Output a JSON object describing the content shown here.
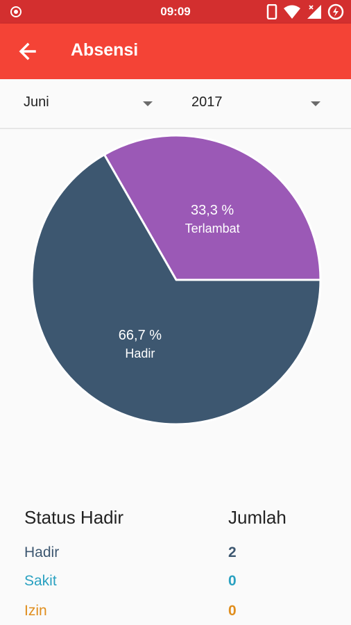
{
  "status_bar": {
    "time": "09:09"
  },
  "app_bar": {
    "title": "Absensi"
  },
  "filters": {
    "month": "Juni",
    "year": "2017"
  },
  "colors": {
    "hadir": "#3d5770",
    "terlambat": "#9b59b6",
    "sakit": "#2aa1c1",
    "izin": "#e08e1d"
  },
  "chart_data": {
    "type": "pie",
    "slices": [
      {
        "label": "Terlambat",
        "value": 33.3,
        "percent_label": "33,3 %",
        "color": "#9b59b6"
      },
      {
        "label": "Hadir",
        "value": 66.7,
        "percent_label": "66,7 %",
        "color": "#3d5770"
      }
    ]
  },
  "table": {
    "header_status": "Status Hadir",
    "header_count": "Jumlah",
    "rows": [
      {
        "label": "Hadir",
        "count": "2",
        "color": "#3d5770"
      },
      {
        "label": "Sakit",
        "count": "0",
        "color": "#2aa1c1"
      },
      {
        "label": "Izin",
        "count": "0",
        "color": "#e08e1d"
      }
    ]
  }
}
